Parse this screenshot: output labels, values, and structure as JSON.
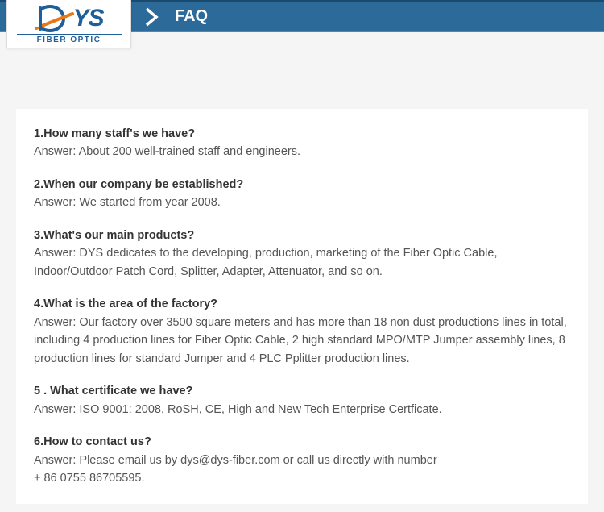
{
  "brand": {
    "logo_letters": "YS",
    "sub": "FIBER OPTIC",
    "d_color": "#1e5f99",
    "swoosh_color": "#e67817"
  },
  "header": {
    "title": "FAQ",
    "bg_color": "#2B6A99",
    "text_color": "#ffffff"
  },
  "faq": [
    {
      "q": "1.How many staff's we have?",
      "a": "Answer: About 200 well-trained staff and engineers."
    },
    {
      "q": "2.When our company be established?",
      "a": "Answer: We started from year 2008."
    },
    {
      "q": "3.What's our main products?",
      "a": "Answer: DYS dedicates to the developing, production, marketing of the Fiber Optic Cable, Indoor/Outdoor Patch Cord, Splitter, Adapter, Attenuator, and so on."
    },
    {
      "q": "4.What is the area of the factory?",
      "a": " Answer: Our factory over 3500 square meters and has more than 18 non dust productions lines in total, including 4 production lines for Fiber Optic Cable, 2 high standard MPO/MTP Jumper assembly lines, 8 production lines for standard Jumper and 4 PLC Pplitter production lines."
    },
    {
      "q": "5 . What certificate we have?",
      "a": "Answer: ISO 9001: 2008, RoSH, CE, High and New Tech Enterprise Certficate."
    },
    {
      "q": "6.How to contact us?",
      "a": "Answer: Please email us by dys@dys-fiber.com or call us directly with number\n+ 86 0755 86705595."
    }
  ]
}
